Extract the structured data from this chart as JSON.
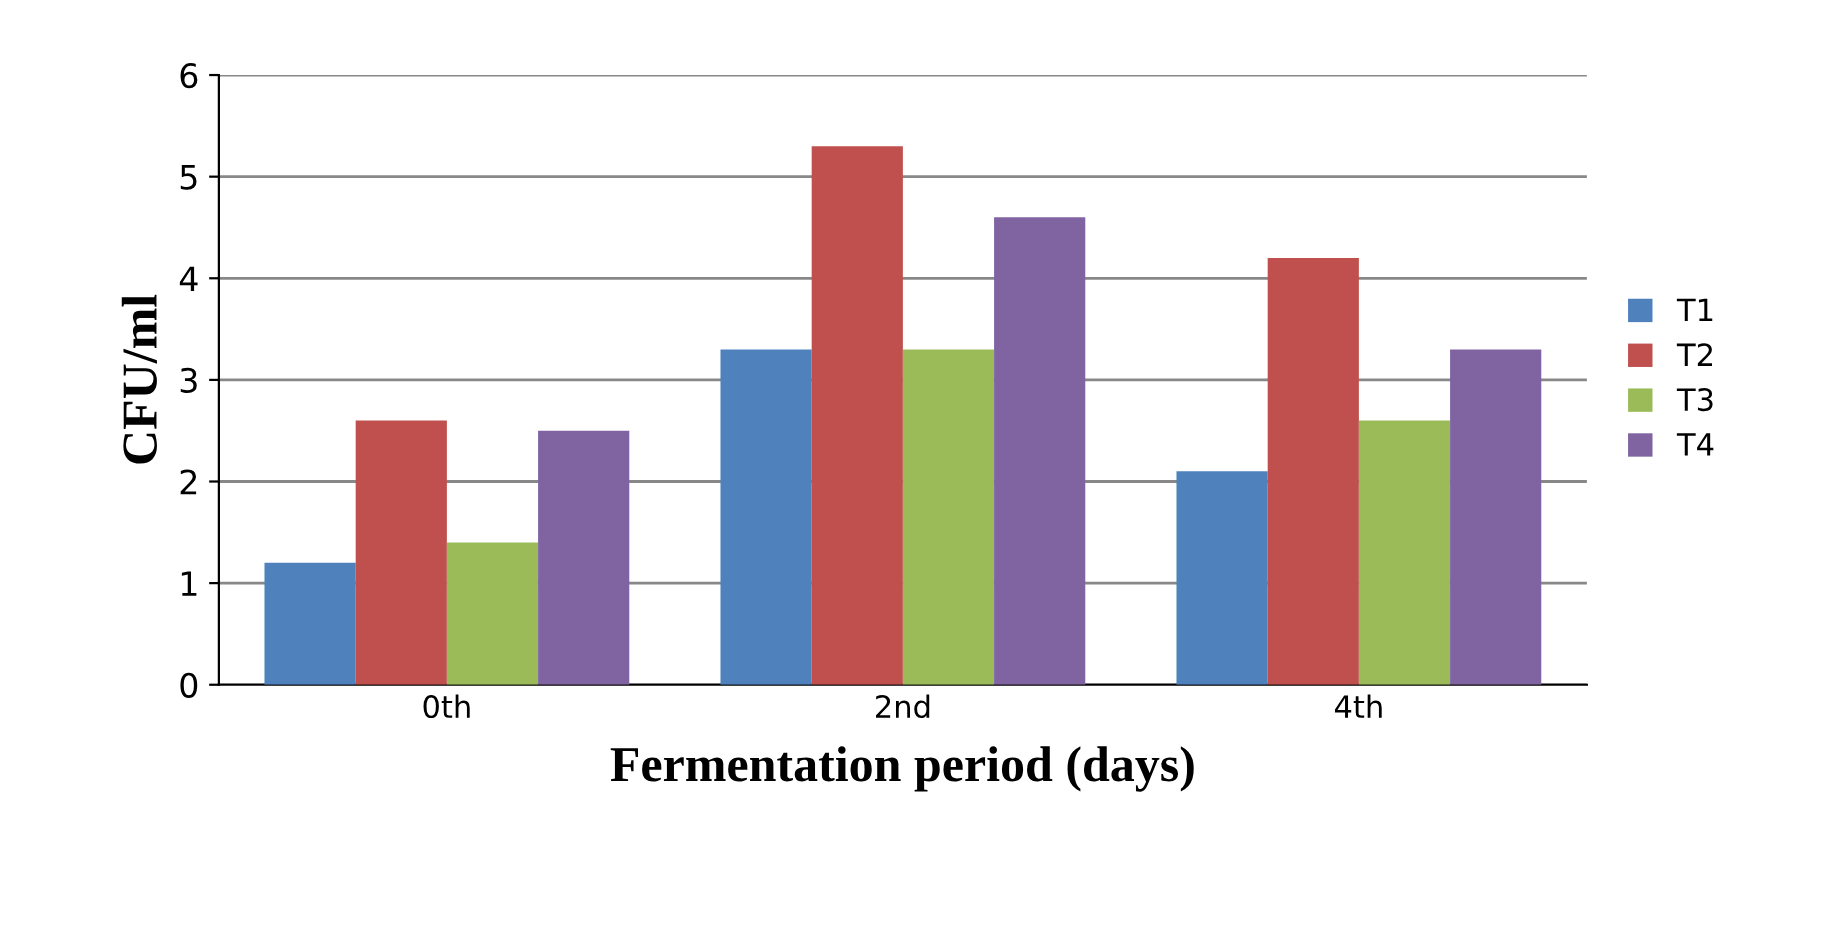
{
  "chart_data": {
    "type": "bar",
    "xlabel": "Fermentation period (days)",
    "ylabel": "CFU/ml",
    "categories": [
      "0th",
      "2nd",
      "4th"
    ],
    "series": [
      {
        "name": "T1",
        "color": "#4f81bd",
        "values": [
          1.2,
          3.3,
          2.1
        ]
      },
      {
        "name": "T2",
        "color": "#c0504d",
        "values": [
          2.6,
          5.3,
          4.2
        ]
      },
      {
        "name": "T3",
        "color": "#9bbb59",
        "values": [
          1.4,
          3.3,
          2.6
        ]
      },
      {
        "name": "T4",
        "color": "#8064a2",
        "values": [
          2.5,
          4.6,
          3.3
        ]
      }
    ],
    "ylim": [
      0,
      6
    ],
    "yticks": [
      0,
      1,
      2,
      3,
      4,
      5,
      6
    ],
    "grid": "y",
    "legend": "right"
  }
}
